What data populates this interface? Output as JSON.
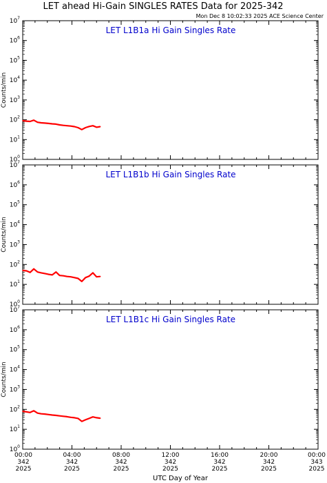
{
  "header": {
    "title": "LET ahead Hi-Gain SINGLES RATES Data for 2025-342",
    "timestamp": "Mon Dec  8 10:02:33 2025 ACE Science Center"
  },
  "colors": {
    "series": "#ff0000",
    "panel_title": "#0000cc",
    "axes": "#000000"
  },
  "chart_data": [
    {
      "type": "line",
      "title": "LET L1B1a Hi Gain Singles Rate",
      "ylabel": "Counts/min",
      "yscale": "log",
      "ylim": [
        1,
        10000000
      ],
      "yticks": [
        "10^0",
        "10^1",
        "10^2",
        "10^3",
        "10^4",
        "10^5",
        "10^6",
        "10^7"
      ],
      "xlim_hours": [
        0,
        24
      ],
      "series": [
        {
          "x_hours": [
            0,
            0.3,
            0.6,
            0.9,
            1.2,
            1.5,
            1.8,
            2.1,
            2.4,
            2.7,
            3.0,
            3.3,
            3.6,
            3.9,
            4.2,
            4.5,
            4.8,
            5.1,
            5.4,
            5.7,
            6.0,
            6.3
          ],
          "values": [
            90,
            85,
            82,
            95,
            75,
            70,
            68,
            65,
            62,
            60,
            55,
            52,
            50,
            48,
            45,
            40,
            32,
            40,
            46,
            50,
            42,
            45
          ]
        }
      ]
    },
    {
      "type": "line",
      "title": "LET L1B1b Hi Gain Singles Rate",
      "ylabel": "Counts/min",
      "yscale": "log",
      "ylim": [
        1,
        10000000
      ],
      "yticks": [
        "10^0",
        "10^1",
        "10^2",
        "10^3",
        "10^4",
        "10^5",
        "10^6",
        "10^7"
      ],
      "xlim_hours": [
        0,
        24
      ],
      "series": [
        {
          "x_hours": [
            0,
            0.3,
            0.6,
            0.9,
            1.2,
            1.5,
            1.8,
            2.1,
            2.4,
            2.7,
            3.0,
            3.3,
            3.6,
            3.9,
            4.2,
            4.5,
            4.8,
            5.1,
            5.4,
            5.7,
            6.0,
            6.3
          ],
          "values": [
            50,
            48,
            40,
            60,
            42,
            38,
            35,
            32,
            30,
            42,
            28,
            27,
            25,
            24,
            22,
            20,
            14,
            22,
            26,
            38,
            24,
            25
          ]
        }
      ]
    },
    {
      "type": "line",
      "title": "LET L1B1c Hi Gain Singles Rate",
      "ylabel": "Counts/min",
      "yscale": "log",
      "ylim": [
        1,
        10000000
      ],
      "yticks": [
        "10^0",
        "10^1",
        "10^2",
        "10^3",
        "10^4",
        "10^5",
        "10^6",
        "10^7"
      ],
      "xlim_hours": [
        0,
        24
      ],
      "series": [
        {
          "x_hours": [
            0,
            0.3,
            0.6,
            0.9,
            1.2,
            1.5,
            1.8,
            2.1,
            2.4,
            2.7,
            3.0,
            3.3,
            3.6,
            3.9,
            4.2,
            4.5,
            4.8,
            5.1,
            5.4,
            5.7,
            6.0,
            6.3
          ],
          "values": [
            80,
            75,
            70,
            85,
            65,
            60,
            58,
            55,
            52,
            50,
            47,
            45,
            43,
            40,
            38,
            35,
            25,
            30,
            35,
            42,
            38,
            36
          ]
        }
      ]
    }
  ],
  "x_axis": {
    "title": "UTC Day of Year",
    "ticks": [
      {
        "hours": 0,
        "time": "00:00",
        "doy": "342",
        "year": "2025"
      },
      {
        "hours": 4,
        "time": "04:00",
        "doy": "342",
        "year": "2025"
      },
      {
        "hours": 8,
        "time": "08:00",
        "doy": "342",
        "year": "2025"
      },
      {
        "hours": 12,
        "time": "12:00",
        "doy": "342",
        "year": "2025"
      },
      {
        "hours": 16,
        "time": "16:00",
        "doy": "342",
        "year": "2025"
      },
      {
        "hours": 20,
        "time": "20:00",
        "doy": "342",
        "year": "2025"
      },
      {
        "hours": 24,
        "time": "00:00",
        "doy": "343",
        "year": "2025"
      }
    ]
  }
}
